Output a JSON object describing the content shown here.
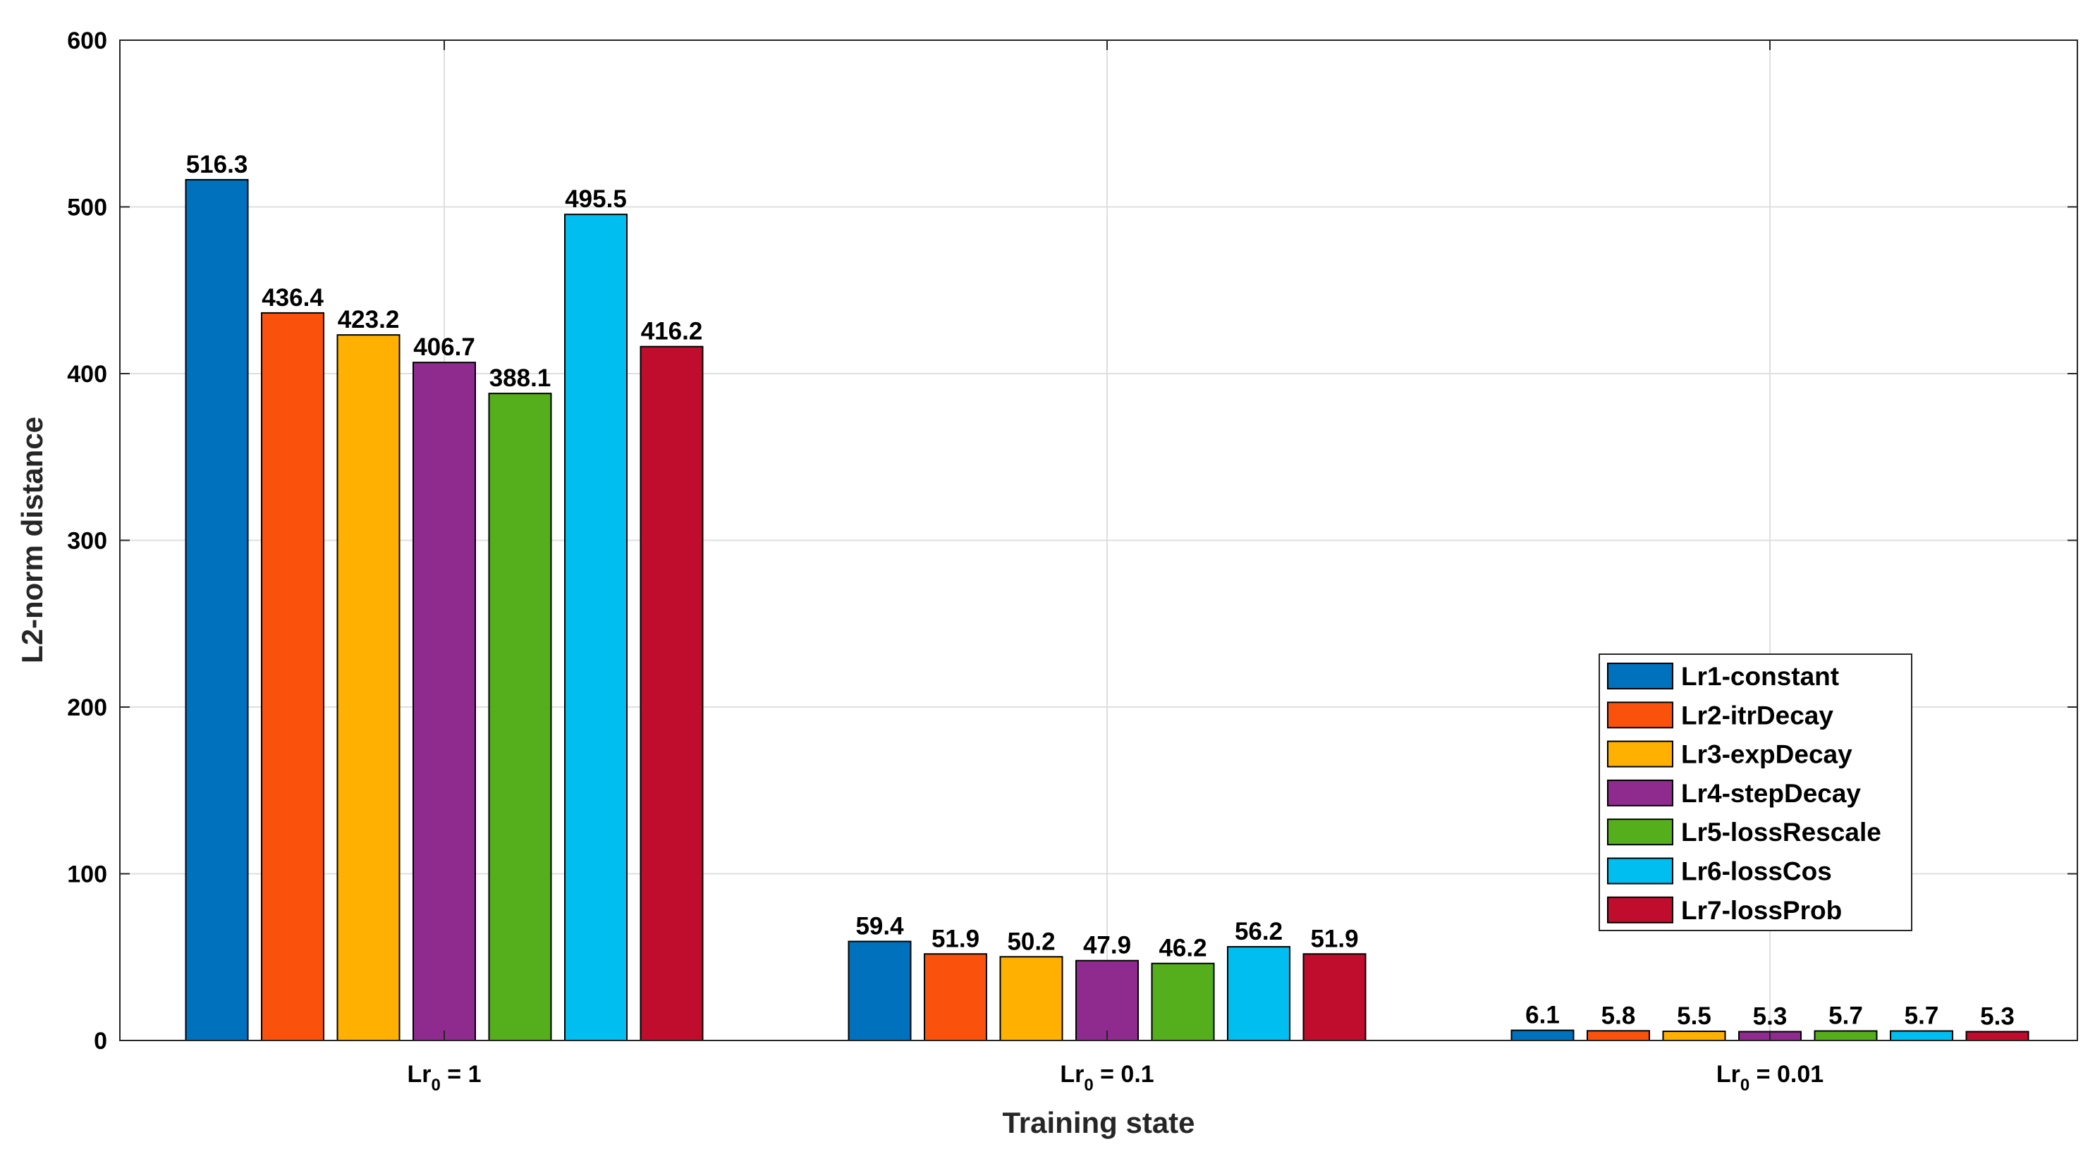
{
  "chart_data": {
    "type": "bar",
    "title": "",
    "xlabel": "Training state",
    "ylabel": "L2-norm distance",
    "ylim": [
      0,
      600
    ],
    "yticks": [
      0,
      100,
      200,
      300,
      400,
      500,
      600
    ],
    "grid": true,
    "legend_position": "bottom-right",
    "categories": [
      {
        "base": "Lr",
        "sub": "0",
        "rest": " = 1"
      },
      {
        "base": "Lr",
        "sub": "0",
        "rest": " = 0.1"
      },
      {
        "base": "Lr",
        "sub": "0",
        "rest": " = 0.01"
      }
    ],
    "series": [
      {
        "name": "Lr1-constant",
        "color": "#0072BD",
        "values": [
          516.3,
          59.4,
          6.1
        ]
      },
      {
        "name": "Lr2-itrDecay",
        "color": "#FA520C",
        "values": [
          436.4,
          51.9,
          5.8
        ]
      },
      {
        "name": "Lr3-expDecay",
        "color": "#FFB000",
        "values": [
          423.2,
          50.2,
          5.5
        ]
      },
      {
        "name": "Lr4-stepDecay",
        "color": "#8F2A8F",
        "values": [
          406.7,
          47.9,
          5.3
        ]
      },
      {
        "name": "Lr5-lossRescale",
        "color": "#55AE1B",
        "values": [
          388.1,
          46.2,
          5.7
        ]
      },
      {
        "name": "Lr6-lossCos",
        "color": "#00BEF0",
        "values": [
          495.5,
          56.2,
          5.7
        ]
      },
      {
        "name": "Lr7-lossProb",
        "color": "#C00D2D",
        "values": [
          416.2,
          51.9,
          5.3
        ]
      }
    ]
  }
}
